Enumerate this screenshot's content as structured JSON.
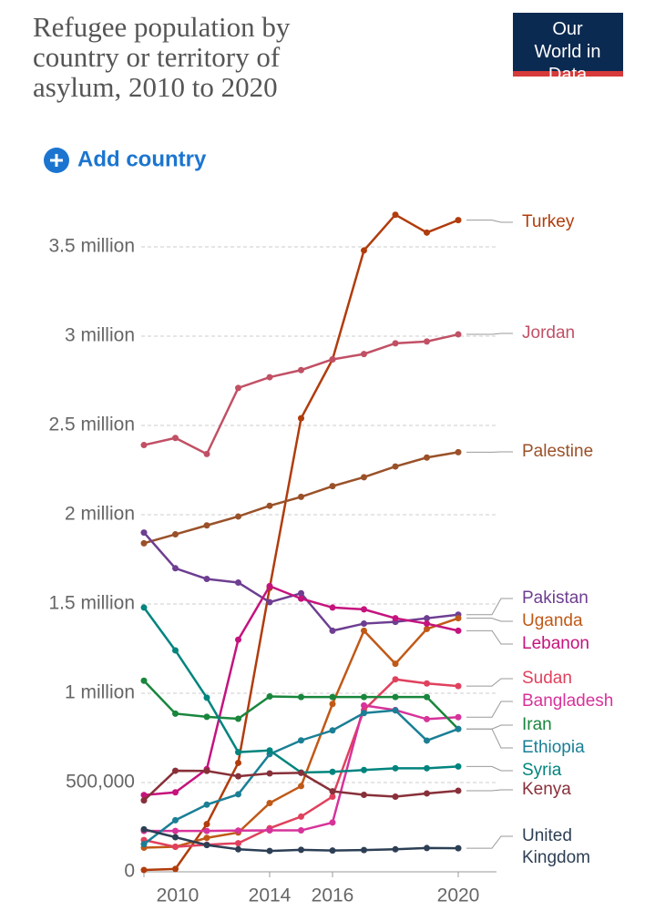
{
  "chart_data": {
    "type": "line",
    "title": "Refugee population by country or territory of asylum, 2010 to 2020",
    "logo": "Our World in Data",
    "button": "Add country",
    "x": [
      2010,
      2011,
      2012,
      2013,
      2014,
      2015,
      2016,
      2017,
      2018,
      2019,
      2020
    ],
    "xlim": [
      2010,
      2020
    ],
    "xticks": [
      2010,
      2014,
      2016,
      2020
    ],
    "ylim": [
      0,
      3700000
    ],
    "yticks": [
      0,
      {
        "value": 500000,
        "label": "500,000"
      },
      {
        "value": 1000000,
        "label": "1 million"
      },
      {
        "value": 1500000,
        "label": "1.5 million"
      },
      {
        "value": 2000000,
        "label": "2 million"
      },
      {
        "value": 2500000,
        "label": "2.5 million"
      },
      {
        "value": 3000000,
        "label": "3 million"
      },
      {
        "value": 3500000,
        "label": "3.5 million"
      }
    ],
    "grid": true,
    "series": [
      {
        "name": "Turkey",
        "color": "#b13c0c",
        "values": [
          10000,
          16000,
          267000,
          610000,
          1590000,
          2540000,
          2870000,
          3480000,
          3680000,
          3580000,
          3650000
        ]
      },
      {
        "name": "Jordan",
        "color": "#c15065",
        "values": [
          2390000,
          2430000,
          2340000,
          2710000,
          2770000,
          2810000,
          2870000,
          2900000,
          2960000,
          2970000,
          3010000
        ]
      },
      {
        "name": "Palestine",
        "color": "#9a5129",
        "values": [
          1840000,
          1890000,
          1940000,
          1990000,
          2050000,
          2100000,
          2160000,
          2210000,
          2270000,
          2320000,
          2350000
        ]
      },
      {
        "name": "Pakistan",
        "color": "#6d3e91",
        "values": [
          1900000,
          1700000,
          1640000,
          1620000,
          1510000,
          1560000,
          1350000,
          1390000,
          1400000,
          1420000,
          1440000
        ]
      },
      {
        "name": "Uganda",
        "color": "#c05917",
        "values": [
          135000,
          140000,
          190000,
          220000,
          385000,
          480000,
          940000,
          1350000,
          1165000,
          1360000,
          1420000
        ]
      },
      {
        "name": "Lebanon",
        "color": "#c5137d",
        "values": [
          430000,
          445000,
          575000,
          1300000,
          1600000,
          1530000,
          1480000,
          1470000,
          1420000,
          1390000,
          1350000
        ]
      },
      {
        "name": "Sudan",
        "color": "#e0415d",
        "values": [
          178000,
          140000,
          152000,
          160000,
          244000,
          309000,
          421000,
          906000,
          1078000,
          1055000,
          1040000
        ]
      },
      {
        "name": "Bangladesh",
        "color": "#d7339a",
        "values": [
          229000,
          229000,
          229000,
          231000,
          232000,
          232000,
          276000,
          932000,
          906000,
          855000,
          866000
        ]
      },
      {
        "name": "Iran",
        "color": "#18863c",
        "values": [
          1070000,
          886000,
          868000,
          857000,
          982000,
          979000,
          979000,
          979000,
          979000,
          979000,
          800000
        ]
      },
      {
        "name": "Ethiopia",
        "color": "#1a7f95",
        "values": [
          155000,
          289000,
          376000,
          434000,
          659000,
          736000,
          792000,
          889000,
          904000,
          735000,
          800000
        ]
      },
      {
        "name": "Syria",
        "color": "#00847e",
        "values": [
          1480000,
          1240000,
          975000,
          670000,
          680000,
          556000,
          560000,
          570000,
          580000,
          580000,
          590000
        ]
      },
      {
        "name": "Kenya",
        "color": "#883039",
        "values": [
          400000,
          566000,
          565000,
          535000,
          551000,
          554000,
          451000,
          431000,
          421000,
          439000,
          454000
        ]
      },
      {
        "name": "United Kingdom",
        "color": "#2d3f55",
        "values": [
          238000,
          194000,
          150000,
          126000,
          117000,
          123000,
          119000,
          122000,
          126000,
          133000,
          132000
        ]
      }
    ]
  }
}
